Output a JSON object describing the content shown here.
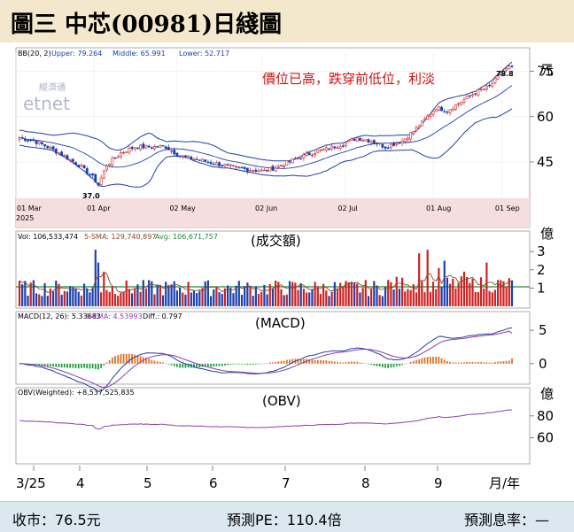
{
  "title": "圖三  中芯(00981)日綫圖",
  "colors": {
    "header_bg": "#f4e8cc",
    "footer_bg": "#dbe8f0",
    "date_band": "#f6dede",
    "up_candle": "#d02020",
    "down_candle": "#1a3fb0",
    "boll_line": "#1f3fa5",
    "macd_line": "#1f3fa5",
    "signal_line": "#8a3fa8",
    "obv_line": "#8a3fa8",
    "vol_ma": "#8a4a2a",
    "avg_line": "#1e8a3a",
    "hist_pos": "#e07020",
    "hist_neg": "#20a040",
    "annotation": "#d01010"
  },
  "chart_data": [
    {
      "panel": "price",
      "type": "candlestick",
      "indicator_label": "BB(20, 2)",
      "indicator_values": [
        "Upper: 79.264",
        "Middle: 65.991",
        "Lower: 52.717"
      ],
      "unit": "元",
      "annotation": "價位已高，跌穿前低位，利淡",
      "low_label": "37.0",
      "high_label": "78.8",
      "ylim": [
        33,
        81
      ],
      "yticks": [
        75,
        60,
        45
      ],
      "date_ticks": [
        "01 Mar",
        "01 Apr",
        "02 May",
        "02 Jun",
        "02 Jul",
        "01 Aug",
        "01 Sep"
      ],
      "year_label": "2025",
      "approx_close_path": [
        [
          0,
          53
        ],
        [
          5,
          52
        ],
        [
          10,
          50
        ],
        [
          16,
          47
        ],
        [
          21,
          44
        ],
        [
          26,
          40
        ],
        [
          28,
          37.5
        ],
        [
          31,
          44
        ],
        [
          36,
          48
        ],
        [
          41,
          50
        ],
        [
          46,
          50
        ],
        [
          52,
          50
        ],
        [
          57,
          47
        ],
        [
          62,
          46
        ],
        [
          67,
          45
        ],
        [
          72,
          44
        ],
        [
          77,
          43
        ],
        [
          82,
          42.5
        ],
        [
          87,
          42
        ],
        [
          92,
          43.5
        ],
        [
          98,
          46
        ],
        [
          104,
          48
        ],
        [
          110,
          49.5
        ],
        [
          115,
          51
        ],
        [
          120,
          53
        ],
        [
          125,
          52
        ],
        [
          130,
          50
        ],
        [
          136,
          52
        ],
        [
          141,
          56
        ],
        [
          145,
          60
        ],
        [
          148,
          63
        ],
        [
          152,
          62
        ],
        [
          157,
          65
        ],
        [
          162,
          68
        ],
        [
          167,
          70
        ],
        [
          172,
          75
        ],
        [
          175,
          77
        ]
      ],
      "ohlc_last": {
        "close": 76.5,
        "high": 78.8
      }
    },
    {
      "panel": "volume",
      "type": "bar",
      "label": "(成交額)",
      "unit": "億",
      "indicator_values": [
        "Vol: 106,533,474",
        "5-SMA: 129,740,897",
        "Avg: 106,671,757"
      ],
      "ylim": [
        0,
        3.4
      ],
      "yticks": [
        3,
        2,
        1
      ],
      "average": 1.07
    },
    {
      "panel": "macd",
      "type": "line",
      "label": "(MACD)",
      "indicator_values": [
        "MACD(12, 26): 5.33683",
        "9-EMA: 4.53993",
        "Diff.: 0.797"
      ],
      "ylim": [
        -2.8,
        6.2
      ],
      "yticks": [
        5,
        0
      ],
      "series": [
        {
          "name": "MACD(12, 26)",
          "last": 5.33683
        },
        {
          "name": "9-EMA",
          "last": 4.53993
        },
        {
          "name": "Diff.",
          "last": 0.797
        }
      ]
    },
    {
      "panel": "obv",
      "type": "line",
      "label": "(OBV)",
      "unit": "億",
      "indicator_values": [
        "OBV(Weighted): +8,537,525,835"
      ],
      "ylim": [
        38,
        96
      ],
      "yticks": [
        80,
        60
      ],
      "last": 85.4
    }
  ],
  "x_axis": {
    "labels": [
      "3/25",
      "4",
      "5",
      "6",
      "7",
      "8",
      "9"
    ],
    "unit_label": "月/年"
  },
  "footer": {
    "close": "收市：76.5元",
    "pe": "預測PE：110.4倍",
    "yield": "預測息率：—"
  }
}
